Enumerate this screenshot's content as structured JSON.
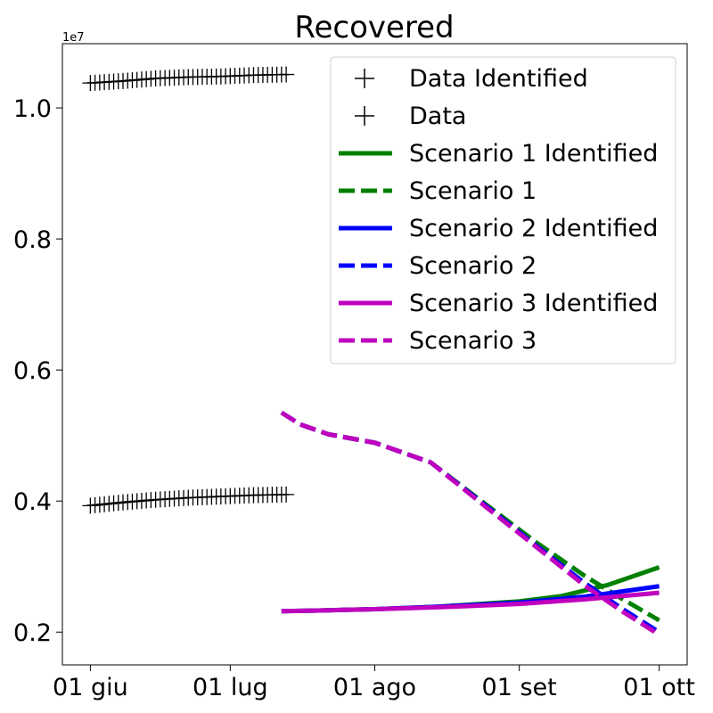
{
  "chart_data": {
    "type": "line",
    "title": "Recovered",
    "xlabel": "",
    "ylabel": "",
    "y_offset_label": "1e7",
    "x_tick_labels": [
      {
        "date": "2020-06-01",
        "label": "01 giu"
      },
      {
        "date": "2020-07-01",
        "label": "01 lug"
      },
      {
        "date": "2020-08-01",
        "label": "01 ago"
      },
      {
        "date": "2020-09-01",
        "label": "01 set"
      },
      {
        "date": "2020-10-01",
        "label": "01 ott"
      }
    ],
    "y_ticks": [
      0.2,
      0.4,
      0.6,
      0.8,
      1.0
    ],
    "y_tick_labels": [
      "0.2",
      "0.4",
      "0.6",
      "0.8",
      "1.0"
    ],
    "xlim": [
      "2020-05-26",
      "2020-10-07"
    ],
    "ylim": [
      0.15,
      1.098
    ],
    "grid": false,
    "legend_position": "top-right",
    "series": [
      {
        "name": "Data Identified",
        "style": "marker",
        "marker": "+",
        "color": "#000000",
        "x_range": [
          "2020-06-01",
          "2020-07-13"
        ],
        "points": [
          [
            "2020-06-01",
            1.038
          ],
          [
            "2020-06-08",
            1.041
          ],
          [
            "2020-06-15",
            1.045
          ],
          [
            "2020-06-22",
            1.047
          ],
          [
            "2020-06-29",
            1.048
          ],
          [
            "2020-07-06",
            1.05
          ],
          [
            "2020-07-13",
            1.051
          ]
        ]
      },
      {
        "name": "Data",
        "style": "marker",
        "marker": "+",
        "color": "#000000",
        "x_range": [
          "2020-06-01",
          "2020-07-13"
        ],
        "points": [
          [
            "2020-06-01",
            0.393
          ],
          [
            "2020-06-08",
            0.398
          ],
          [
            "2020-06-15",
            0.402
          ],
          [
            "2020-06-22",
            0.405
          ],
          [
            "2020-06-29",
            0.407
          ],
          [
            "2020-07-06",
            0.409
          ],
          [
            "2020-07-13",
            0.41
          ]
        ]
      },
      {
        "name": "Scenario 1 Identified",
        "style": "solid",
        "color": "#008000",
        "points": [
          [
            "2020-07-12",
            0.232
          ],
          [
            "2020-07-20",
            0.233
          ],
          [
            "2020-08-01",
            0.235
          ],
          [
            "2020-08-15",
            0.239
          ],
          [
            "2020-09-01",
            0.247
          ],
          [
            "2020-09-10",
            0.255
          ],
          [
            "2020-09-20",
            0.272
          ],
          [
            "2020-10-01",
            0.299
          ]
        ]
      },
      {
        "name": "Scenario 1",
        "style": "dashed",
        "color": "#008000",
        "points": [
          [
            "2020-07-12",
            0.535
          ],
          [
            "2020-07-16",
            0.517
          ],
          [
            "2020-07-22",
            0.502
          ],
          [
            "2020-08-01",
            0.489
          ],
          [
            "2020-08-13",
            0.459
          ],
          [
            "2020-08-25",
            0.394
          ],
          [
            "2020-09-05",
            0.335
          ],
          [
            "2020-09-15",
            0.286
          ],
          [
            "2020-09-23",
            0.251
          ],
          [
            "2020-10-01",
            0.218
          ]
        ]
      },
      {
        "name": "Scenario 2 Identified",
        "style": "solid",
        "color": "#0000ff",
        "points": [
          [
            "2020-07-12",
            0.232
          ],
          [
            "2020-07-20",
            0.233
          ],
          [
            "2020-08-01",
            0.235
          ],
          [
            "2020-08-15",
            0.239
          ],
          [
            "2020-09-01",
            0.245
          ],
          [
            "2020-09-15",
            0.254
          ],
          [
            "2020-10-01",
            0.27
          ]
        ]
      },
      {
        "name": "Scenario 2",
        "style": "dashed",
        "color": "#0000ff",
        "points": [
          [
            "2020-07-12",
            0.535
          ],
          [
            "2020-07-16",
            0.517
          ],
          [
            "2020-07-22",
            0.502
          ],
          [
            "2020-08-01",
            0.489
          ],
          [
            "2020-08-13",
            0.459
          ],
          [
            "2020-08-25",
            0.392
          ],
          [
            "2020-09-05",
            0.33
          ],
          [
            "2020-09-15",
            0.275
          ],
          [
            "2020-09-23",
            0.236
          ],
          [
            "2020-10-01",
            0.2
          ]
        ]
      },
      {
        "name": "Scenario 3 Identified",
        "style": "solid",
        "color": "#bf00bf",
        "points": [
          [
            "2020-07-12",
            0.232
          ],
          [
            "2020-07-20",
            0.233
          ],
          [
            "2020-08-01",
            0.235
          ],
          [
            "2020-08-15",
            0.238
          ],
          [
            "2020-09-01",
            0.243
          ],
          [
            "2020-09-15",
            0.25
          ],
          [
            "2020-10-01",
            0.26
          ]
        ]
      },
      {
        "name": "Scenario 3",
        "style": "dashed",
        "color": "#bf00bf",
        "points": [
          [
            "2020-07-12",
            0.535
          ],
          [
            "2020-07-16",
            0.517
          ],
          [
            "2020-07-22",
            0.502
          ],
          [
            "2020-08-01",
            0.489
          ],
          [
            "2020-08-13",
            0.459
          ],
          [
            "2020-08-25",
            0.39
          ],
          [
            "2020-09-05",
            0.328
          ],
          [
            "2020-09-15",
            0.271
          ],
          [
            "2020-09-23",
            0.232
          ],
          [
            "2020-10-01",
            0.196
          ]
        ]
      }
    ]
  }
}
